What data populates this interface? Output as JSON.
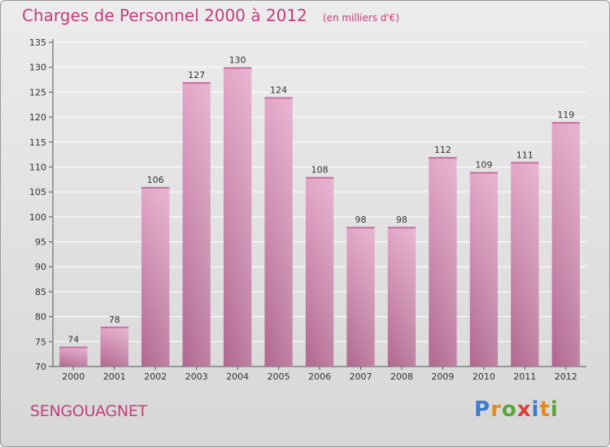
{
  "chart_data": {
    "type": "bar",
    "title": "Charges de Personnel 2000 à 2012",
    "subtitle": "(en milliers d'€)",
    "categories": [
      "2000",
      "2001",
      "2002",
      "2003",
      "2004",
      "2005",
      "2006",
      "2007",
      "2008",
      "2009",
      "2010",
      "2011",
      "2012"
    ],
    "values": [
      74,
      78,
      106,
      127,
      130,
      124,
      108,
      98,
      98,
      112,
      109,
      111,
      119
    ],
    "ylim": [
      70,
      135
    ],
    "yticks": [
      70,
      75,
      80,
      85,
      90,
      95,
      100,
      105,
      110,
      115,
      120,
      125,
      130,
      135
    ],
    "grid": true,
    "bar_color": "#d98ab6"
  },
  "footer": {
    "place_name": "SENGOUAGNET",
    "brand": "Proxiti"
  },
  "colors": {
    "accent": "#c2407a",
    "brand_letters": [
      "#3d7bd1",
      "#e48a1f",
      "#5aa63a",
      "#e03c3c",
      "#3d7bd1",
      "#e48a1f",
      "#5aa63a"
    ]
  }
}
